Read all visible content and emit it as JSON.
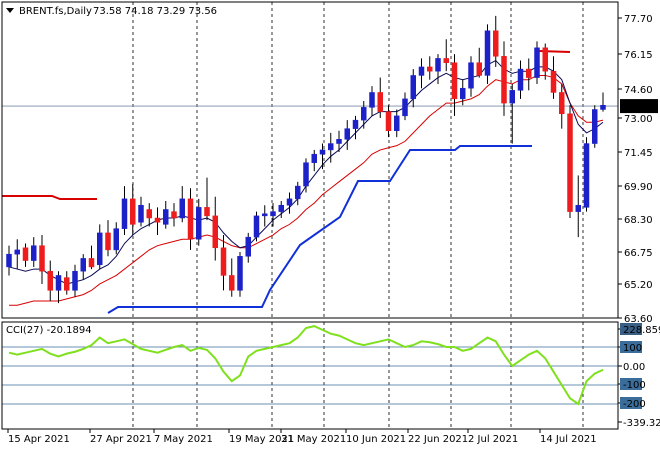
{
  "header": {
    "symbol_label": "BRENT.fs,Daily",
    "ohlc": "73.58 74.18 73.29 73.56"
  },
  "cci_panel": {
    "label": "CCI(27) -20.1894"
  },
  "colors": {
    "bull": "#1c22c8",
    "bear": "#ee1c1c",
    "ma_fast": "#0a0a55",
    "ma_slow": "#d90000",
    "support_line": "#1230d8",
    "resistance_line": "#d90000",
    "cci_line": "#7fe01d",
    "level_line": "#3a6d9a",
    "price_box_bg": "#000000"
  },
  "chart_data": [
    {
      "type": "candlestick",
      "title": "BRENT.fs,Daily",
      "ylim": [
        63.6,
        78.6
      ],
      "y_ticks": [
        "77.70",
        "76.15",
        "74.60",
        "73.00",
        "71.45",
        "69.90",
        "68.30",
        "66.75",
        "65.20",
        "63.60"
      ],
      "x_ticks": [
        "15 Apr 2021",
        "27 Apr 2021",
        "7 May 2021",
        "19 May 2021",
        "31 May 2021",
        "10 Jun 2021",
        "22 Jun 2021",
        "2 Jul 2021",
        "14 Jul 2021"
      ],
      "current_price": 73.56,
      "current_price_label": "73.56",
      "candles": [
        [
          66.0,
          67.0,
          65.6,
          66.6
        ],
        [
          66.6,
          67.3,
          65.9,
          66.8
        ],
        [
          66.9,
          67.1,
          66.0,
          66.3
        ],
        [
          66.3,
          67.4,
          66.0,
          67.0
        ],
        [
          67.0,
          67.5,
          65.2,
          65.8
        ],
        [
          65.8,
          66.3,
          64.4,
          64.9
        ],
        [
          64.9,
          65.8,
          64.3,
          65.6
        ],
        [
          65.5,
          65.8,
          64.7,
          64.9
        ],
        [
          64.9,
          66.1,
          64.6,
          65.8
        ],
        [
          65.8,
          66.6,
          65.4,
          66.4
        ],
        [
          66.4,
          67.0,
          65.9,
          66.0
        ],
        [
          66.1,
          68.0,
          65.9,
          67.6
        ],
        [
          67.6,
          68.2,
          66.5,
          66.8
        ],
        [
          66.8,
          68.1,
          66.6,
          67.8
        ],
        [
          67.8,
          69.8,
          67.5,
          69.2
        ],
        [
          69.2,
          69.9,
          67.5,
          68.0
        ],
        [
          68.1,
          69.3,
          67.9,
          68.9
        ],
        [
          68.7,
          69.0,
          67.9,
          68.3
        ],
        [
          68.3,
          68.8,
          67.5,
          68.1
        ],
        [
          68.0,
          69.1,
          67.8,
          68.7
        ],
        [
          68.6,
          69.0,
          67.9,
          68.3
        ],
        [
          68.3,
          69.8,
          68.1,
          69.2
        ],
        [
          69.2,
          69.7,
          66.8,
          67.3
        ],
        [
          67.3,
          69.2,
          67.0,
          68.8
        ],
        [
          68.8,
          70.2,
          68.2,
          68.4
        ],
        [
          68.4,
          69.3,
          66.3,
          66.9
        ],
        [
          66.9,
          67.5,
          64.9,
          65.6
        ],
        [
          65.6,
          66.4,
          64.6,
          64.9
        ],
        [
          64.9,
          66.7,
          64.6,
          66.5
        ],
        [
          66.5,
          67.6,
          66.2,
          67.4
        ],
        [
          67.4,
          68.6,
          67.2,
          68.4
        ],
        [
          68.4,
          68.9,
          67.9,
          68.5
        ],
        [
          68.4,
          69.0,
          67.9,
          68.6
        ],
        [
          68.6,
          69.1,
          68.3,
          68.9
        ],
        [
          68.9,
          69.5,
          68.5,
          69.2
        ],
        [
          69.2,
          70.0,
          68.9,
          69.8
        ],
        [
          69.8,
          71.1,
          69.5,
          70.9
        ],
        [
          70.9,
          71.5,
          70.5,
          71.3
        ],
        [
          71.3,
          71.8,
          70.6,
          71.5
        ],
        [
          71.5,
          72.3,
          70.9,
          71.8
        ],
        [
          71.8,
          72.4,
          71.4,
          72.0
        ],
        [
          72.0,
          72.9,
          71.5,
          72.5
        ],
        [
          72.5,
          73.1,
          72.0,
          72.9
        ],
        [
          72.9,
          73.8,
          72.5,
          73.5
        ],
        [
          73.5,
          74.5,
          73.1,
          74.2
        ],
        [
          74.2,
          74.9,
          73.0,
          73.3
        ],
        [
          73.3,
          73.6,
          72.1,
          72.4
        ],
        [
          72.4,
          73.4,
          72.1,
          73.1
        ],
        [
          73.1,
          74.2,
          72.9,
          73.9
        ],
        [
          73.9,
          75.3,
          73.5,
          75.0
        ],
        [
          75.0,
          75.8,
          74.4,
          75.4
        ],
        [
          75.4,
          75.9,
          74.8,
          75.2
        ],
        [
          75.2,
          76.0,
          74.6,
          75.8
        ],
        [
          75.8,
          76.7,
          75.2,
          75.6
        ],
        [
          75.6,
          76.0,
          73.1,
          73.9
        ],
        [
          73.9,
          74.8,
          73.6,
          74.4
        ],
        [
          74.4,
          75.9,
          74.0,
          75.6
        ],
        [
          75.6,
          76.3,
          74.9,
          75.0
        ],
        [
          75.0,
          77.4,
          74.6,
          77.1
        ],
        [
          77.1,
          77.8,
          75.4,
          75.9
        ],
        [
          75.9,
          76.6,
          73.1,
          73.7
        ],
        [
          73.7,
          74.6,
          71.8,
          74.3
        ],
        [
          74.3,
          75.7,
          73.9,
          75.3
        ],
        [
          75.3,
          75.8,
          74.3,
          74.9
        ],
        [
          74.9,
          76.6,
          74.6,
          76.3
        ],
        [
          76.3,
          76.5,
          74.8,
          75.2
        ],
        [
          75.2,
          75.9,
          73.9,
          74.2
        ],
        [
          74.2,
          74.6,
          72.5,
          73.2
        ],
        [
          73.2,
          73.6,
          68.3,
          68.6
        ],
        [
          68.6,
          70.3,
          67.4,
          68.9
        ],
        [
          68.8,
          72.1,
          68.6,
          71.8
        ],
        [
          71.8,
          73.6,
          71.6,
          73.4
        ],
        [
          73.4,
          74.2,
          73.3,
          73.6
        ]
      ],
      "series": [
        {
          "values": [
            66.0,
            65.9,
            65.8,
            65.9,
            65.9,
            65.6,
            65.4,
            65.2,
            65.3,
            65.4,
            65.6,
            65.9,
            66.1,
            66.5,
            67.1,
            67.5,
            67.8,
            68.0,
            68.2,
            68.3,
            68.3,
            68.4,
            68.3,
            68.2,
            68.3,
            68.1,
            67.6,
            67.2,
            66.9,
            67.0,
            67.4,
            67.8,
            68.2,
            68.5,
            68.8,
            69.2,
            69.8,
            70.3,
            70.8,
            71.2,
            71.5,
            71.9,
            72.3,
            72.7,
            73.1,
            73.3,
            73.3,
            73.3,
            73.5,
            73.9,
            74.3,
            74.6,
            74.9,
            75.1,
            74.9,
            74.8,
            74.9,
            75.0,
            75.5,
            75.7,
            75.3,
            75.1,
            75.2,
            75.2,
            75.4,
            75.4,
            75.2,
            74.8,
            73.7,
            72.7,
            72.3,
            72.5,
            72.8
          ]
        },
        {
          "values": [
            64.2,
            64.2,
            64.3,
            64.4,
            64.4,
            64.4,
            64.4,
            64.5,
            64.6,
            64.7,
            64.9,
            65.2,
            65.4,
            65.6,
            65.9,
            66.2,
            66.5,
            66.8,
            67.0,
            67.1,
            67.2,
            67.3,
            67.3,
            67.4,
            67.5,
            67.4,
            67.2,
            67.0,
            66.9,
            66.9,
            67.1,
            67.3,
            67.5,
            67.8,
            68.0,
            68.3,
            68.7,
            69.0,
            69.4,
            69.7,
            70.0,
            70.3,
            70.6,
            70.9,
            71.3,
            71.5,
            71.6,
            71.7,
            71.9,
            72.3,
            72.7,
            73.1,
            73.4,
            73.7,
            73.7,
            73.8,
            73.9,
            74.1,
            74.5,
            74.8,
            74.7,
            74.6,
            74.8,
            74.8,
            75.0,
            75.0,
            74.9,
            74.6,
            73.7,
            73.1,
            72.8,
            72.8,
            72.9
          ]
        }
      ]
    },
    {
      "type": "line",
      "title": "CCI(27) -20.1894",
      "ylim": [
        -339.3,
        228.86
      ],
      "y_ticks": [
        "228.8596",
        "100",
        "0.00",
        "-100",
        "-200",
        "-339.3244"
      ],
      "levels": [
        100,
        0,
        -100,
        -200
      ],
      "series": [
        {
          "values": [
            70,
            60,
            70,
            80,
            90,
            65,
            50,
            65,
            75,
            90,
            110,
            150,
            120,
            130,
            140,
            115,
            90,
            80,
            70,
            85,
            100,
            110,
            80,
            95,
            85,
            40,
            -30,
            -80,
            -50,
            50,
            80,
            90,
            100,
            110,
            120,
            150,
            200,
            210,
            190,
            170,
            160,
            140,
            120,
            110,
            120,
            130,
            140,
            120,
            100,
            110,
            130,
            125,
            115,
            100,
            100,
            80,
            90,
            120,
            150,
            130,
            60,
            0,
            30,
            60,
            80,
            40,
            -30,
            -100,
            -170,
            -200,
            -80,
            -40,
            -20.19
          ]
        }
      ]
    }
  ]
}
